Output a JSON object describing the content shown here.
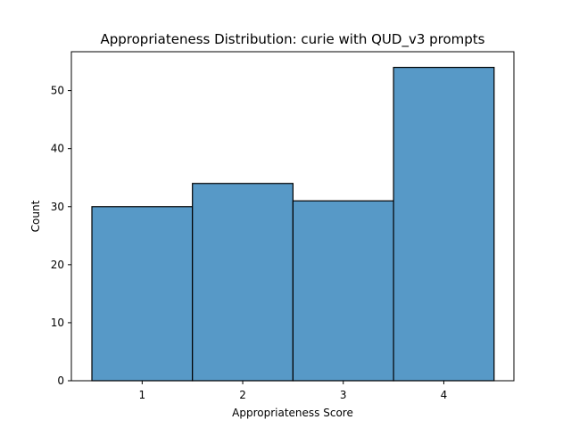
{
  "chart_data": {
    "type": "bar",
    "title": "Appropriateness Distribution: curie with QUD_v3 prompts",
    "xlabel": "Appropriateness Score",
    "ylabel": "Count",
    "categories": [
      "1",
      "2",
      "3",
      "4"
    ],
    "values": [
      30,
      34,
      31,
      54
    ],
    "ylim": [
      0,
      56.7
    ],
    "yticks": [
      0,
      10,
      20,
      30,
      40,
      50
    ],
    "grid": false,
    "bar_color": "#5799c7",
    "edge_color": "#000000"
  }
}
